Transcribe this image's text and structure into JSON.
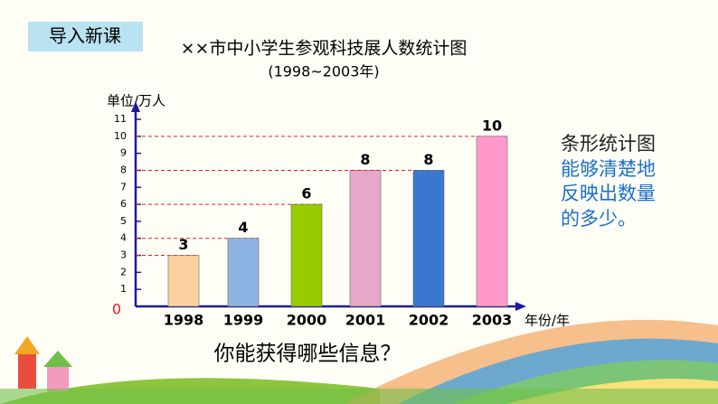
{
  "badge": "导入新课",
  "note": [
    "条形统计图",
    "能够清楚地",
    "反映出数量",
    "的多少。"
  ],
  "question": "你能获得哪些信息？",
  "chart_data": {
    "type": "bar",
    "title": "××市中小学生参观科技展人数统计图",
    "subtitle": "(1998~2003年)",
    "y_label": "单位/万人",
    "x_label": "年份/年",
    "categories": [
      "1998",
      "1999",
      "2000",
      "2001",
      "2002",
      "2003"
    ],
    "values": [
      3,
      4,
      6,
      8,
      8,
      10
    ],
    "colors": [
      "#fccf9f",
      "#8eb4e3",
      "#99cc00",
      "#e6a8c8",
      "#3a78cf",
      "#ff99cc"
    ],
    "ylim": [
      0,
      11
    ],
    "yticks": [
      0,
      1,
      2,
      3,
      4,
      5,
      6,
      7,
      8,
      9,
      10,
      11
    ],
    "guide_lines": true
  }
}
